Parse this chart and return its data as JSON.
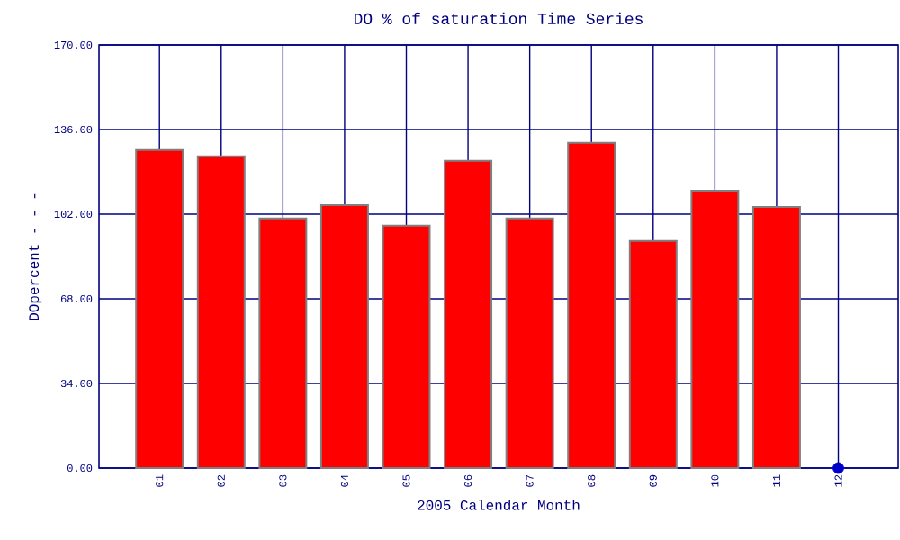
{
  "chart_data": {
    "type": "bar",
    "title": "DO % of saturation Time Series",
    "xlabel": "2005 Calendar Month",
    "ylabel": "DOpercent - - -",
    "categories": [
      "01",
      "02",
      "03",
      "04",
      "05",
      "06",
      "07",
      "08",
      "09",
      "10",
      "11",
      "12"
    ],
    "series": [
      {
        "color": "#ff0000",
        "values": [
          127.8,
          125.2,
          100.3,
          105.6,
          97.4,
          123.4,
          100.3,
          130.7,
          91.2,
          111.4,
          104.9,
          null
        ]
      },
      {
        "type": "scatter",
        "color": "#0000cc",
        "x": [
          "12"
        ],
        "values": [
          0
        ]
      }
    ],
    "ylim": [
      0,
      170
    ],
    "yticks": [
      {
        "value": 0,
        "label": "0.00"
      },
      {
        "value": 34,
        "label": "34.00"
      },
      {
        "value": 68,
        "label": "68.00"
      },
      {
        "value": 102,
        "label": "102.00"
      },
      {
        "value": 136,
        "label": "136.00"
      },
      {
        "value": 170,
        "label": "170.00"
      }
    ],
    "grid": true,
    "marker": "circle"
  }
}
